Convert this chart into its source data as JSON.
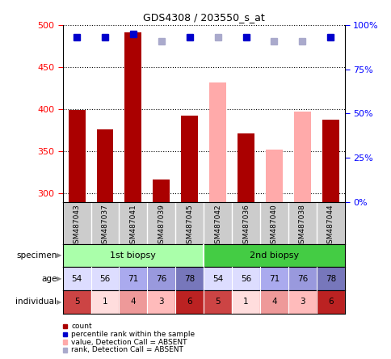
{
  "title": "GDS4308 / 203550_s_at",
  "samples": [
    "GSM487043",
    "GSM487037",
    "GSM487041",
    "GSM487039",
    "GSM487045",
    "GSM487042",
    "GSM487036",
    "GSM487040",
    "GSM487038",
    "GSM487044"
  ],
  "count_values": [
    399,
    376,
    491,
    317,
    392,
    null,
    371,
    null,
    null,
    388
  ],
  "absent_values": [
    null,
    null,
    null,
    null,
    null,
    432,
    null,
    352,
    397,
    null
  ],
  "percentile_present": [
    93,
    93,
    95,
    null,
    93,
    null,
    93,
    null,
    null,
    93
  ],
  "percentile_absent": [
    null,
    null,
    null,
    91,
    null,
    93,
    null,
    91,
    91,
    null
  ],
  "ylim_left": [
    290,
    500
  ],
  "ylim_right": [
    0,
    100
  ],
  "yticks_left": [
    300,
    350,
    400,
    450,
    500
  ],
  "yticks_right": [
    0,
    25,
    50,
    75,
    100
  ],
  "bar_color_present": "#aa0000",
  "bar_color_absent": "#ffaaaa",
  "dot_color_present": "#0000cc",
  "dot_color_absent": "#aaaacc",
  "specimen_labels": [
    "1st biopsy",
    "2nd biopsy"
  ],
  "specimen_spans": [
    [
      0,
      5
    ],
    [
      5,
      10
    ]
  ],
  "specimen_color_1": "#aaffaa",
  "specimen_color_2": "#44cc44",
  "age_values": [
    54,
    56,
    71,
    76,
    78,
    54,
    56,
    71,
    76,
    78
  ],
  "age_colors": [
    "#ddddff",
    "#ddddff",
    "#aaaaee",
    "#9999dd",
    "#7777bb",
    "#ddddff",
    "#ddddff",
    "#aaaaee",
    "#9999dd",
    "#7777bb"
  ],
  "individual_values": [
    5,
    1,
    4,
    3,
    6,
    5,
    1,
    4,
    3,
    6
  ],
  "individual_colors": [
    "#cc4444",
    "#ffdddd",
    "#ee9999",
    "#ffbbbb",
    "#bb2222",
    "#cc4444",
    "#ffdddd",
    "#ee9999",
    "#ffbbbb",
    "#bb2222"
  ],
  "ybase": 290,
  "dot_size": 6,
  "bar_width": 0.6,
  "xlabel_bg": "#cccccc",
  "grid_color": "#000000",
  "legend_items": [
    {
      "color": "#aa0000",
      "label": "count"
    },
    {
      "color": "#0000cc",
      "label": "percentile rank within the sample"
    },
    {
      "color": "#ffaaaa",
      "label": "value, Detection Call = ABSENT"
    },
    {
      "color": "#aaaacc",
      "label": "rank, Detection Call = ABSENT"
    }
  ]
}
